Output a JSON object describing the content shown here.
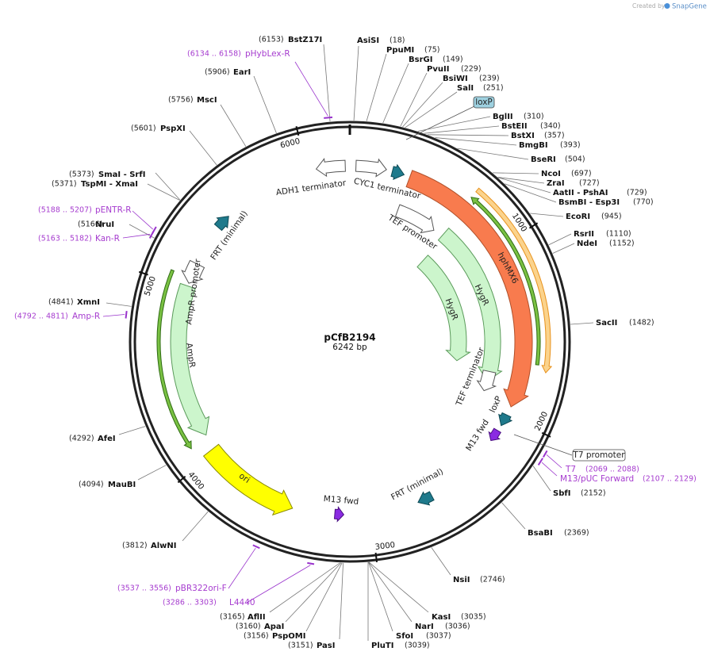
{
  "branding": {
    "created_by": "Created by",
    "brand": "SnapGene"
  },
  "plasmid": {
    "name": "pCfB2194",
    "size": "6242 bp"
  },
  "ruler_ticks": [
    1000,
    2000,
    3000,
    4000,
    5000,
    6000
  ],
  "enzymes": [
    {
      "name": "AsiSI",
      "position": "(18)"
    },
    {
      "name": "PpuMI",
      "position": "(75)"
    },
    {
      "name": "BsrGI",
      "position": "(149)"
    },
    {
      "name": "PvuII",
      "position": "(229)"
    },
    {
      "name": "BsiWI",
      "position": "(239)"
    },
    {
      "name": "SalI",
      "position": "(251)"
    },
    {
      "name": "BglII",
      "position": "(310)"
    },
    {
      "name": "BstEII",
      "position": "(340)"
    },
    {
      "name": "BstXI",
      "position": "(357)"
    },
    {
      "name": "BmgBI",
      "position": "(393)"
    },
    {
      "name": "BseRI",
      "position": "(504)"
    },
    {
      "name": "NcoI",
      "position": "(697)"
    },
    {
      "name": "ZraI",
      "position": "(727)"
    },
    {
      "name": "AatII - PshAI",
      "position": "(729)"
    },
    {
      "name": "BsmBI - Esp3I",
      "position": "(770)"
    },
    {
      "name": "EcoRI",
      "position": "(945)"
    },
    {
      "name": "RsrII",
      "position": "(1110)"
    },
    {
      "name": "NdeI",
      "position": "(1152)"
    },
    {
      "name": "SacII",
      "position": "(1482)"
    },
    {
      "name": "SbfI",
      "position": "(2152)"
    },
    {
      "name": "BsaBI",
      "position": "(2369)"
    },
    {
      "name": "NsiI",
      "position": "(2746)"
    },
    {
      "name": "KasI",
      "position": "(3035)"
    },
    {
      "name": "NarI",
      "position": "(3036)"
    },
    {
      "name": "SfoI",
      "position": "(3037)"
    },
    {
      "name": "PluTI",
      "position": "(3039)"
    },
    {
      "name": "PasI",
      "position": "(3151)"
    },
    {
      "name": "PspOMI",
      "position": "(3156)"
    },
    {
      "name": "ApaI",
      "position": "(3160)"
    },
    {
      "name": "AflII",
      "position": "(3165)"
    },
    {
      "name": "AlwNI",
      "position": "(3812)"
    },
    {
      "name": "MauBI",
      "position": "(4094)"
    },
    {
      "name": "AfeI",
      "position": "(4292)"
    },
    {
      "name": "XmnI",
      "position": "(4841)"
    },
    {
      "name": "NruI",
      "position": "(5166)"
    },
    {
      "name": "TspMI - XmaI",
      "position": "(5371)"
    },
    {
      "name": "SmaI - SrfI",
      "position": "(5373)"
    },
    {
      "name": "PspXI",
      "position": "(5601)"
    },
    {
      "name": "MscI",
      "position": "(5756)"
    },
    {
      "name": "EarI",
      "position": "(5906)"
    },
    {
      "name": "BstZ17I",
      "position": "(6153)"
    }
  ],
  "primers": [
    {
      "name": "pHybLex-R",
      "range": "(6134 .. 6158)"
    },
    {
      "name": "pENTR-R",
      "range": "(5188 .. 5207)"
    },
    {
      "name": "Kan-R",
      "range": "(5163 .. 5182)"
    },
    {
      "name": "Amp-R",
      "range": "(4792 .. 4811)"
    },
    {
      "name": "T7",
      "range": "(2069 .. 2088)"
    },
    {
      "name": "M13/pUC Forward",
      "range": "(2107 .. 2129)"
    },
    {
      "name": "pBR322ori-F",
      "range": "(3537 .. 3556)"
    },
    {
      "name": "L4440",
      "range": "(3286 .. 3303)"
    }
  ],
  "features": [
    {
      "name": "loxP"
    },
    {
      "name": "ADH1 terminator"
    },
    {
      "name": "CYC1 terminator"
    },
    {
      "name": "TEF promoter"
    },
    {
      "name": "hphMX6"
    },
    {
      "name": "HygR"
    },
    {
      "name": "HygR"
    },
    {
      "name": "TEF terminator"
    },
    {
      "name": "loxP"
    },
    {
      "name": "M13 fwd"
    },
    {
      "name": "FRT (minimal)"
    },
    {
      "name": "M13 fwd"
    },
    {
      "name": "ori"
    },
    {
      "name": "AmpR"
    },
    {
      "name": "AmpR promoter"
    },
    {
      "name": "FRT (minimal)"
    },
    {
      "name": "T7 promoter"
    }
  ]
}
